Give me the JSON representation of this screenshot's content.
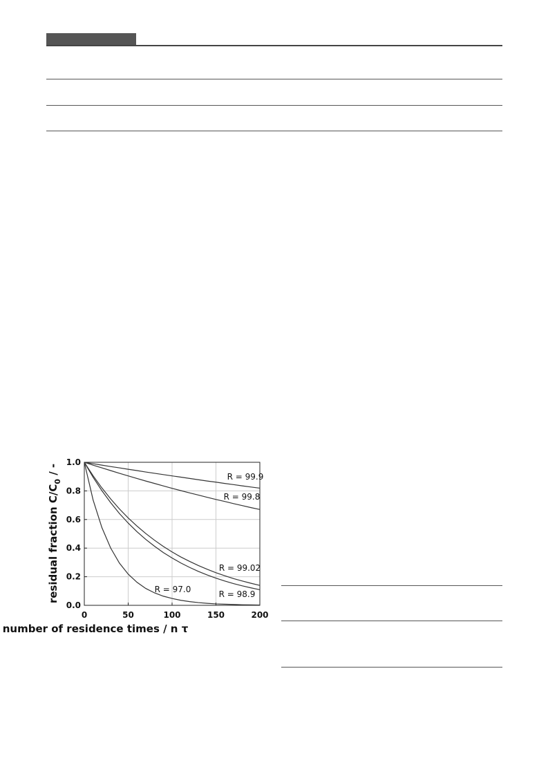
{
  "chart_data": {
    "type": "line",
    "xlabel": "number of residence times  /  n τ",
    "ylabel": "residual fraction C/C",
    "ylabel_sub": "0",
    "ylabel_tail": "  /  -",
    "x": [
      0,
      10,
      20,
      30,
      40,
      50,
      60,
      70,
      80,
      90,
      100,
      110,
      120,
      130,
      140,
      150,
      160,
      170,
      180,
      190,
      200
    ],
    "series": [
      {
        "name": "R = 99.9",
        "color": "#333333",
        "values": [
          1,
          0.99,
          0.98,
          0.97,
          0.961,
          0.951,
          0.942,
          0.932,
          0.923,
          0.914,
          0.905,
          0.896,
          0.887,
          0.878,
          0.869,
          0.861,
          0.852,
          0.844,
          0.835,
          0.827,
          0.819
        ]
      },
      {
        "name": "R = 99.8",
        "color": "#333333",
        "values": [
          1,
          0.98,
          0.961,
          0.942,
          0.923,
          0.905,
          0.887,
          0.869,
          0.852,
          0.835,
          0.818,
          0.802,
          0.786,
          0.771,
          0.755,
          0.74,
          0.726,
          0.711,
          0.697,
          0.683,
          0.67
        ]
      },
      {
        "name": "R = 99.02",
        "color": "#333333",
        "values": [
          1,
          0.906,
          0.821,
          0.744,
          0.674,
          0.611,
          0.554,
          0.502,
          0.455,
          0.412,
          0.373,
          0.338,
          0.307,
          0.278,
          0.252,
          0.228,
          0.207,
          0.187,
          0.17,
          0.154,
          0.139
        ]
      },
      {
        "name": "R = 98.9",
        "color": "#333333",
        "values": [
          1,
          0.895,
          0.802,
          0.718,
          0.642,
          0.575,
          0.515,
          0.461,
          0.413,
          0.369,
          0.331,
          0.296,
          0.265,
          0.237,
          0.212,
          0.19,
          0.17,
          0.152,
          0.136,
          0.122,
          0.109
        ]
      },
      {
        "name": "R = 97.0",
        "color": "#333333",
        "values": [
          1,
          0.737,
          0.544,
          0.401,
          0.295,
          0.218,
          0.161,
          0.118,
          0.087,
          0.064,
          0.048,
          0.035,
          0.026,
          0.019,
          0.014,
          0.01,
          0.008,
          0.006,
          0.004,
          0.003,
          0.002
        ]
      }
    ],
    "xlim": [
      0,
      200
    ],
    "xticks": [
      0,
      50,
      100,
      150,
      200
    ],
    "ylim": [
      0,
      1
    ],
    "yticks": [
      {
        "value": 0,
        "label": "0.0"
      },
      0.2,
      0.4,
      0.6,
      0.8,
      {
        "value": 1,
        "label": "1.0"
      }
    ],
    "grid": true
  }
}
